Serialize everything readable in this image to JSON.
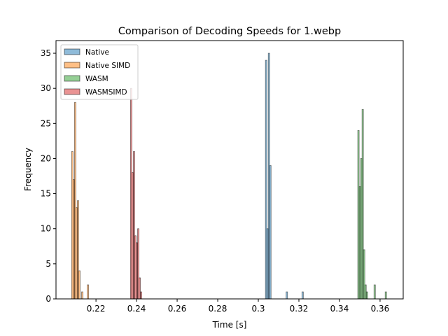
{
  "chart_data": {
    "type": "histogram",
    "title": "Comparison of Decoding Speeds for 1.webp",
    "xlabel": "Time [s]",
    "ylabel": "Frequency",
    "xlim": [
      0.2003,
      0.3714
    ],
    "ylim": [
      0,
      36.8
    ],
    "xticks": [
      0.22,
      0.24,
      0.26,
      0.28,
      0.3,
      0.32,
      0.34,
      0.36
    ],
    "yticks": [
      0,
      5,
      10,
      15,
      20,
      25,
      30,
      35
    ],
    "legend": "upper left",
    "alpha": 0.5,
    "edgecolor": "#000000",
    "series": [
      {
        "name": "Native",
        "color": "#1f77b4",
        "bins": [
          0.3035,
          0.3042,
          0.3049,
          0.3056,
          0.3063,
          0.3137,
          0.3144,
          0.3215,
          0.3222
        ],
        "values": [
          34,
          10,
          35,
          19,
          0,
          1,
          0,
          1
        ]
      },
      {
        "name": "Native SIMD",
        "color": "#ff7f0e",
        "bins": [
          0.208,
          0.2087,
          0.2094,
          0.2101,
          0.2108,
          0.2115,
          0.2122,
          0.2129,
          0.2136,
          0.2157,
          0.2164
        ],
        "values": [
          21,
          17,
          28,
          13,
          14,
          4,
          0,
          1,
          0,
          2
        ]
      },
      {
        "name": "WASM",
        "color": "#2ca02c",
        "bins": [
          0.349,
          0.3497,
          0.3504,
          0.3511,
          0.3518,
          0.3525,
          0.3532,
          0.3539,
          0.357,
          0.3577,
          0.3625,
          0.3632
        ],
        "values": [
          24,
          16,
          20,
          27,
          7,
          2,
          1,
          0,
          2,
          0,
          1
        ]
      },
      {
        "name": "WASMSIMD",
        "color": "#d62728",
        "bins": [
          0.237,
          0.2377,
          0.2384,
          0.2391,
          0.2398,
          0.2405,
          0.2412,
          0.2419,
          0.2426
        ],
        "values": [
          30,
          18,
          21,
          9,
          8,
          10,
          3,
          1
        ]
      }
    ]
  }
}
